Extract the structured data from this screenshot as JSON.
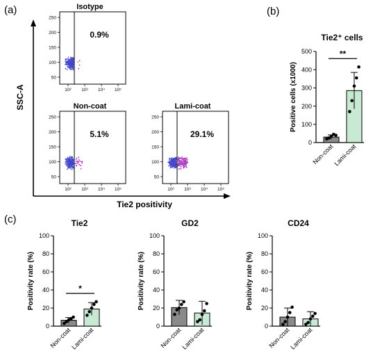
{
  "panel_letters": {
    "a": "(a)",
    "b": "(b)",
    "c": "(c)"
  },
  "flow": {
    "y_axis_label": "SSC-A",
    "x_axis_label": "Tie2 positivity",
    "y_ticks": [
      "250",
      "200",
      "150",
      "100",
      "50"
    ],
    "x_ticks": [
      "10²",
      "10³",
      "10⁴",
      "10⁵"
    ],
    "plots": [
      {
        "title": "Isotype",
        "percent": "0.9%",
        "positive_fraction": 0.009
      },
      {
        "title": "Non-coat",
        "percent": "5.1%",
        "positive_fraction": 0.051
      },
      {
        "title": "Lami-coat",
        "percent": "29.1%",
        "positive_fraction": 0.291
      }
    ]
  },
  "chart_data": [
    {
      "type": "bar",
      "title": "Tie2⁺ cells",
      "ylabel": "Positive cells (x1000)",
      "xlabel": "",
      "categories": [
        "Non-coat",
        "Lami-coat"
      ],
      "values": [
        30,
        285
      ],
      "errors": [
        12,
        100
      ],
      "points": [
        [
          20,
          25,
          35,
          45,
          40
        ],
        [
          170,
          230,
          310,
          355,
          415
        ]
      ],
      "colors": [
        "#8a8a8a",
        "#c8ead5"
      ],
      "ylim": [
        0,
        500
      ],
      "yticks": [
        0,
        100,
        200,
        300,
        400,
        500
      ],
      "significance": "**"
    },
    {
      "type": "bar",
      "title": "Tie2",
      "ylabel": "Positivity rate (%)",
      "xlabel": "",
      "categories": [
        "Non-coat",
        "Lami-coat"
      ],
      "values": [
        6.5,
        19
      ],
      "errors": [
        3,
        7
      ],
      "points": [
        [
          3,
          5,
          7,
          8,
          10
        ],
        [
          12,
          16,
          20,
          24,
          27
        ]
      ],
      "colors": [
        "#8a8a8a",
        "#c8ead5"
      ],
      "ylim": [
        0,
        100
      ],
      "yticks": [
        0,
        20,
        40,
        60,
        80,
        100
      ],
      "significance": "*"
    },
    {
      "type": "bar",
      "title": "GD2",
      "ylabel": "Positivity rate (%)",
      "xlabel": "",
      "categories": [
        "Non-coat",
        "Lami-coat"
      ],
      "values": [
        20.5,
        14.5
      ],
      "errors": [
        8,
        13
      ],
      "points": [
        [
          13,
          18,
          20,
          24,
          27
        ],
        [
          5,
          7,
          13,
          17,
          25
        ]
      ],
      "colors": [
        "#8a8a8a",
        "#c8ead5"
      ],
      "ylim": [
        0,
        100
      ],
      "yticks": [
        0,
        20,
        40,
        60,
        80,
        100
      ],
      "significance": ""
    },
    {
      "type": "bar",
      "title": "CD24",
      "ylabel": "Positivity rate (%)",
      "xlabel": "",
      "categories": [
        "Non-coat",
        "Lami-coat"
      ],
      "values": [
        10,
        8
      ],
      "errors": [
        10,
        8
      ],
      "points": [
        [
          2,
          5,
          10,
          15,
          21
        ],
        [
          2,
          4,
          8,
          11,
          14
        ]
      ],
      "colors": [
        "#8a8a8a",
        "#c8ead5"
      ],
      "ylim": [
        0,
        100
      ],
      "yticks": [
        0,
        20,
        40,
        60,
        80,
        100
      ],
      "significance": ""
    }
  ]
}
